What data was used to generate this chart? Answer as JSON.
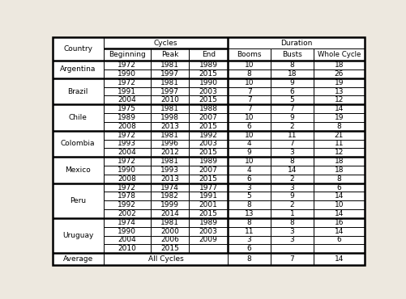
{
  "countries": [
    {
      "name": "Argentina",
      "rows": [
        [
          "1972",
          "1981",
          "1989",
          "10",
          "8",
          "18"
        ],
        [
          "1990",
          "1997",
          "2015",
          "8",
          "18",
          "26"
        ]
      ]
    },
    {
      "name": "Brazil",
      "rows": [
        [
          "1972",
          "1981",
          "1990",
          "10",
          "9",
          "19"
        ],
        [
          "1991",
          "1997",
          "2003",
          "7",
          "6",
          "13"
        ],
        [
          "2004",
          "2010",
          "2015",
          "7",
          "5",
          "12"
        ]
      ]
    },
    {
      "name": "Chile",
      "rows": [
        [
          "1975",
          "1981",
          "1988",
          "7",
          "7",
          "14"
        ],
        [
          "1989",
          "1998",
          "2007",
          "10",
          "9",
          "19"
        ],
        [
          "2008",
          "2013",
          "2015",
          "6",
          "2",
          "8"
        ]
      ]
    },
    {
      "name": "Colombia",
      "rows": [
        [
          "1972",
          "1981",
          "1992",
          "10",
          "11",
          "21"
        ],
        [
          "1993",
          "1996",
          "2003",
          "4",
          "7",
          "11"
        ],
        [
          "2004",
          "2012",
          "2015",
          "9",
          "3",
          "12"
        ]
      ]
    },
    {
      "name": "Mexico",
      "rows": [
        [
          "1972",
          "1981",
          "1989",
          "10",
          "8",
          "18"
        ],
        [
          "1990",
          "1993",
          "2007",
          "4",
          "14",
          "18"
        ],
        [
          "2008",
          "2013",
          "2015",
          "6",
          "2",
          "8"
        ]
      ]
    },
    {
      "name": "Peru",
      "rows": [
        [
          "1972",
          "1974",
          "1977",
          "3",
          "3",
          "6"
        ],
        [
          "1978",
          "1982",
          "1991",
          "5",
          "9",
          "14"
        ],
        [
          "1992",
          "1999",
          "2001",
          "8",
          "2",
          "10"
        ],
        [
          "2002",
          "2014",
          "2015",
          "13",
          "1",
          "14"
        ]
      ]
    },
    {
      "name": "Uruguay",
      "rows": [
        [
          "1974",
          "1981",
          "1989",
          "8",
          "8",
          "16"
        ],
        [
          "1990",
          "2000",
          "2003",
          "11",
          "3",
          "14"
        ],
        [
          "2004",
          "2006",
          "2009",
          "3",
          "3",
          "6"
        ],
        [
          "2010",
          "2015",
          "",
          "6",
          "",
          ""
        ]
      ]
    }
  ],
  "sub_headers": [
    "Beginning",
    "Peak",
    "End",
    "Booms",
    "Busts",
    "Whole Cycle"
  ],
  "avg_vals": [
    "8",
    "7",
    "14"
  ],
  "col_proportions": [
    1.25,
    1.15,
    0.95,
    0.95,
    1.05,
    1.05,
    1.25
  ],
  "bg_color": "#ede8df",
  "border_color": "#000000",
  "font_size": 6.5,
  "thick_lw": 1.8,
  "thin_lw": 0.7
}
